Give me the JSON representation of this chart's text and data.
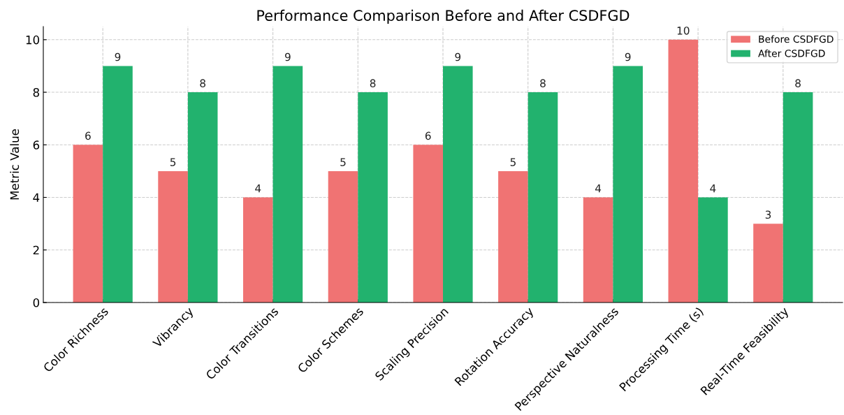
{
  "chart_data": {
    "type": "bar",
    "title": "Performance Comparison Before and After CSDFGD",
    "ylabel": "Metric Value",
    "categories": [
      "Color Richness",
      "Vibrancy",
      "Color Transitions",
      "Color Schemes",
      "Scaling Precision",
      "Rotation Accuracy",
      "Perspective Naturalness",
      "Processing Time (s)",
      "Real-Time Feasibility"
    ],
    "series": [
      {
        "name": "Before CSDFGD",
        "color": "#f07373",
        "values": [
          6,
          5,
          4,
          5,
          6,
          5,
          4,
          10,
          3
        ]
      },
      {
        "name": "After CSDFGD",
        "color": "#22b26e",
        "values": [
          9,
          8,
          9,
          8,
          9,
          8,
          9,
          4,
          8
        ]
      }
    ],
    "ylim": [
      0,
      10.5
    ],
    "yticks": [
      0,
      2,
      4,
      6,
      8,
      10
    ],
    "grid": true,
    "legend": "top right",
    "data_labels": true
  }
}
